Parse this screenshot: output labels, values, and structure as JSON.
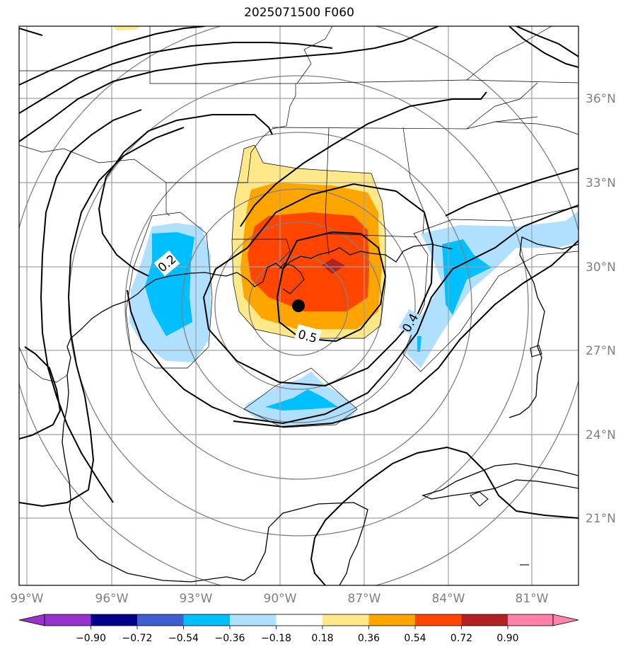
{
  "title": "2025071500 F060",
  "map": {
    "lon_ticks": [
      "99°W",
      "96°W",
      "93°W",
      "90°W",
      "87°W",
      "84°W",
      "81°W"
    ],
    "lat_ticks": [
      "36°N",
      "33°N",
      "30°N",
      "27°N",
      "24°N",
      "21°N"
    ],
    "contour_labels": [
      "0.2",
      "0.5",
      "0.4"
    ],
    "center_marker": "filled-circle",
    "fill_levels": {
      "pos_0_18": "#ffe88a",
      "pos_0_36": "#ffa500",
      "pos_0_54": "#ff4500",
      "pos_0_72": "#b22222",
      "neg_0_18": "#b0e0ff",
      "neg_0_36": "#00bfff"
    }
  },
  "colorbar": {
    "labels": [
      "−0.90",
      "−0.72",
      "−0.54",
      "−0.36",
      "−0.18",
      "0.18",
      "0.36",
      "0.54",
      "0.72",
      "0.90"
    ],
    "colors": [
      "#9932cc",
      "#00008b",
      "#3f5fcf",
      "#00bfff",
      "#b0e0ff",
      "#ffffff",
      "#ffe88a",
      "#ffa500",
      "#ff4500",
      "#b22222",
      "#ff82ab"
    ]
  }
}
